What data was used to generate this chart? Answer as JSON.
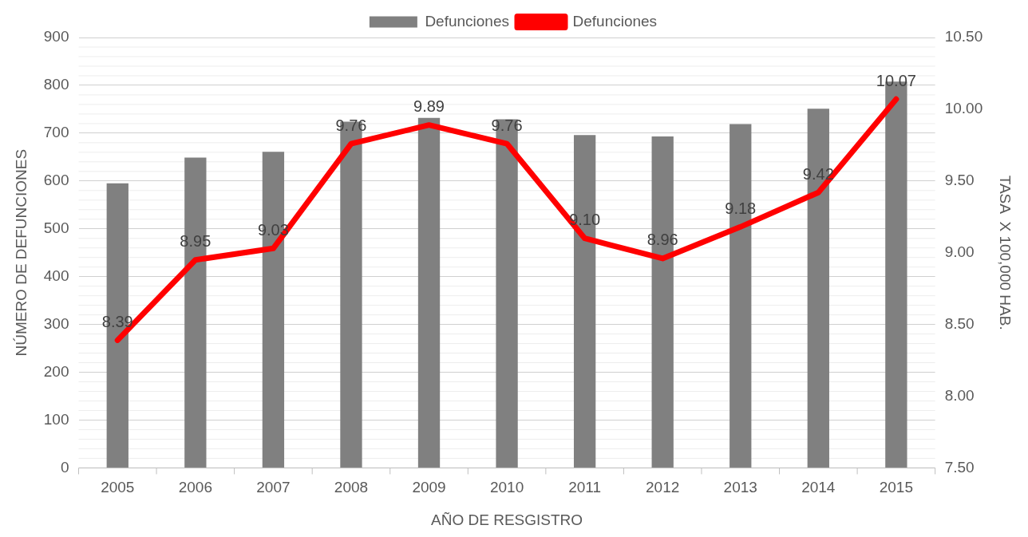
{
  "chart_data": {
    "type": "bar",
    "categories": [
      "2005",
      "2006",
      "2007",
      "2008",
      "2009",
      "2010",
      "2011",
      "2012",
      "2013",
      "2014",
      "2015"
    ],
    "series": [
      {
        "name": "Defunciones",
        "color": "#808080",
        "values": [
          595,
          649,
          661,
          724,
          732,
          729,
          696,
          693,
          719,
          751,
          808
        ]
      },
      {
        "name": "Defunciones",
        "type": "line",
        "axis": "y2",
        "color": "#ff0000",
        "values": [
          8.39,
          8.95,
          9.03,
          9.76,
          9.89,
          9.76,
          9.1,
          8.96,
          9.18,
          9.42,
          10.07
        ],
        "value_labels": [
          "8.39",
          "8.95",
          "9.03",
          "9.76",
          "9.89",
          "9.76",
          "9.10",
          "8.96",
          "9.18",
          "9.42",
          "10.07"
        ]
      }
    ],
    "xlabel": "AÑO DE RESGISTRO",
    "ylabel": "NÚMERO DE DEFUNCIONES",
    "y2label": "TASA  X 100,000 HAB.",
    "ylim": [
      0,
      900
    ],
    "yticks": [
      0,
      100,
      200,
      300,
      400,
      500,
      600,
      700,
      800,
      900
    ],
    "y2lim": [
      7.5,
      10.5
    ],
    "y2ticks": [
      {
        "value": 7.5,
        "label": "7.50"
      },
      {
        "value": 8,
        "label": "8.00"
      },
      {
        "value": 8.5,
        "label": "8.50"
      },
      {
        "value": 9,
        "label": "9.00"
      },
      {
        "value": 9.5,
        "label": "9.50"
      },
      {
        "value": 10,
        "label": "10.00"
      },
      {
        "value": 10.5,
        "label": "10.50"
      }
    ],
    "grid": "y",
    "legend": "top",
    "marker": "none"
  }
}
